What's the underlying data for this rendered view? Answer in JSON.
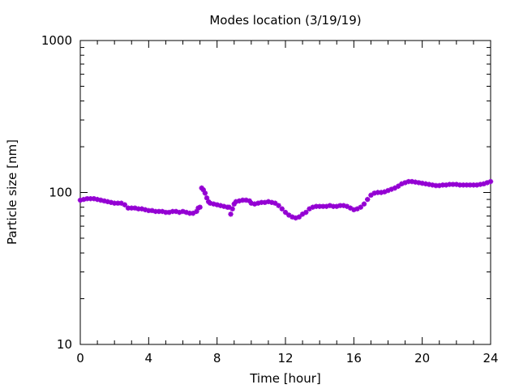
{
  "chart_data": {
    "type": "scatter",
    "title": "Modes location (3/19/19)",
    "xlabel": "Time [hour]",
    "ylabel": "Particle size [nm]",
    "xlim": [
      0,
      24
    ],
    "ylim": [
      10,
      1000
    ],
    "y_scale": "log",
    "grid": false,
    "legend": "none",
    "x_ticks": [
      {
        "value": 0,
        "label": "0"
      },
      {
        "value": 4,
        "label": "4"
      },
      {
        "value": 8,
        "label": "8"
      },
      {
        "value": 12,
        "label": "12"
      },
      {
        "value": 16,
        "label": "16"
      },
      {
        "value": 20,
        "label": "20"
      },
      {
        "value": 24,
        "label": "24"
      }
    ],
    "y_ticks": [
      {
        "value": 10,
        "label": "10"
      },
      {
        "value": 100,
        "label": "100"
      },
      {
        "value": 1000,
        "label": "1000"
      }
    ],
    "series": [
      {
        "color": "#9400d3",
        "marker": "star",
        "points": [
          [
            0.0,
            89
          ],
          [
            0.2,
            90
          ],
          [
            0.4,
            91
          ],
          [
            0.6,
            91
          ],
          [
            0.8,
            91
          ],
          [
            1.0,
            90
          ],
          [
            1.2,
            89
          ],
          [
            1.4,
            88
          ],
          [
            1.6,
            87
          ],
          [
            1.8,
            86
          ],
          [
            2.0,
            85
          ],
          [
            2.2,
            85
          ],
          [
            2.4,
            85
          ],
          [
            2.6,
            83
          ],
          [
            2.8,
            79
          ],
          [
            3.0,
            79
          ],
          [
            3.2,
            79
          ],
          [
            3.4,
            78
          ],
          [
            3.6,
            78
          ],
          [
            3.8,
            77
          ],
          [
            4.0,
            76
          ],
          [
            4.2,
            76
          ],
          [
            4.4,
            75
          ],
          [
            4.6,
            75
          ],
          [
            4.8,
            75
          ],
          [
            5.0,
            74
          ],
          [
            5.2,
            74
          ],
          [
            5.4,
            75
          ],
          [
            5.6,
            75
          ],
          [
            5.8,
            74
          ],
          [
            6.0,
            75
          ],
          [
            6.2,
            74
          ],
          [
            6.4,
            73
          ],
          [
            6.6,
            73
          ],
          [
            6.8,
            75
          ],
          [
            6.9,
            79
          ],
          [
            7.0,
            80
          ],
          [
            7.1,
            107
          ],
          [
            7.2,
            104
          ],
          [
            7.3,
            99
          ],
          [
            7.4,
            92
          ],
          [
            7.5,
            87
          ],
          [
            7.6,
            85
          ],
          [
            7.8,
            84
          ],
          [
            8.0,
            83
          ],
          [
            8.2,
            82
          ],
          [
            8.4,
            81
          ],
          [
            8.6,
            80
          ],
          [
            8.7,
            80
          ],
          [
            8.8,
            72
          ],
          [
            8.9,
            78
          ],
          [
            9.0,
            84
          ],
          [
            9.1,
            87
          ],
          [
            9.3,
            88
          ],
          [
            9.5,
            89
          ],
          [
            9.7,
            89
          ],
          [
            9.9,
            88
          ],
          [
            10.0,
            85
          ],
          [
            10.2,
            84
          ],
          [
            10.4,
            85
          ],
          [
            10.6,
            86
          ],
          [
            10.8,
            86
          ],
          [
            11.0,
            87
          ],
          [
            11.2,
            86
          ],
          [
            11.4,
            85
          ],
          [
            11.6,
            82
          ],
          [
            11.8,
            78
          ],
          [
            12.0,
            74
          ],
          [
            12.2,
            71
          ],
          [
            12.4,
            69
          ],
          [
            12.6,
            68
          ],
          [
            12.8,
            69
          ],
          [
            13.0,
            72
          ],
          [
            13.2,
            74
          ],
          [
            13.4,
            78
          ],
          [
            13.6,
            80
          ],
          [
            13.8,
            81
          ],
          [
            14.0,
            81
          ],
          [
            14.2,
            81
          ],
          [
            14.4,
            81
          ],
          [
            14.6,
            82
          ],
          [
            14.8,
            81
          ],
          [
            15.0,
            81
          ],
          [
            15.2,
            82
          ],
          [
            15.4,
            82
          ],
          [
            15.6,
            81
          ],
          [
            15.8,
            79
          ],
          [
            16.0,
            77
          ],
          [
            16.2,
            78
          ],
          [
            16.4,
            80
          ],
          [
            16.6,
            84
          ],
          [
            16.8,
            90
          ],
          [
            17.0,
            96
          ],
          [
            17.2,
            99
          ],
          [
            17.4,
            100
          ],
          [
            17.6,
            100
          ],
          [
            17.8,
            101
          ],
          [
            18.0,
            103
          ],
          [
            18.2,
            105
          ],
          [
            18.4,
            107
          ],
          [
            18.6,
            110
          ],
          [
            18.8,
            114
          ],
          [
            19.0,
            116
          ],
          [
            19.2,
            118
          ],
          [
            19.4,
            118
          ],
          [
            19.6,
            117
          ],
          [
            19.8,
            116
          ],
          [
            20.0,
            115
          ],
          [
            20.2,
            114
          ],
          [
            20.4,
            113
          ],
          [
            20.6,
            112
          ],
          [
            20.8,
            111
          ],
          [
            21.0,
            111
          ],
          [
            21.2,
            112
          ],
          [
            21.4,
            112
          ],
          [
            21.6,
            113
          ],
          [
            21.8,
            113
          ],
          [
            22.0,
            113
          ],
          [
            22.2,
            112
          ],
          [
            22.4,
            112
          ],
          [
            22.6,
            112
          ],
          [
            22.8,
            112
          ],
          [
            23.0,
            112
          ],
          [
            23.2,
            112
          ],
          [
            23.4,
            113
          ],
          [
            23.6,
            114
          ],
          [
            23.8,
            116
          ],
          [
            24.0,
            118
          ]
        ]
      }
    ]
  }
}
